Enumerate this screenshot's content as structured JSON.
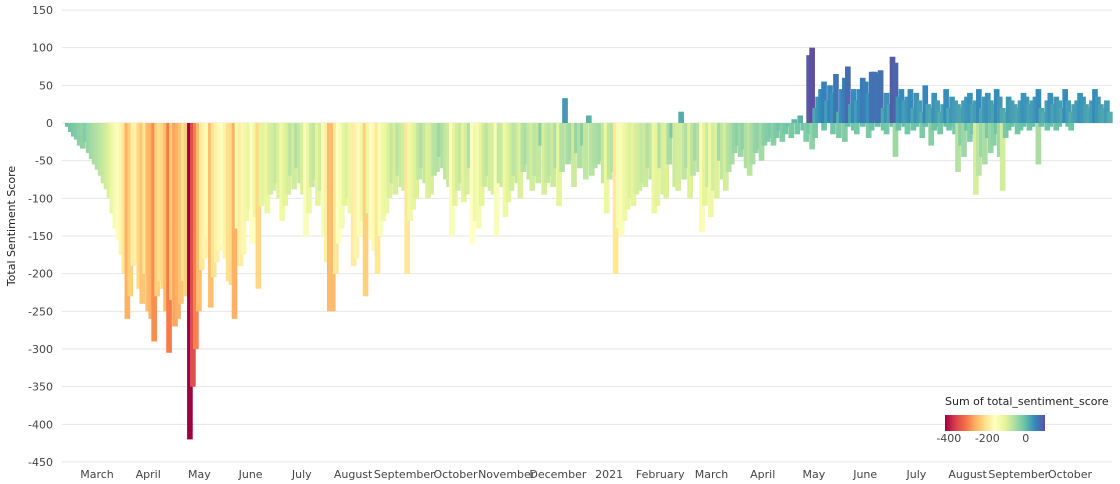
{
  "chart_data": {
    "type": "bar",
    "title": "",
    "xlabel": "",
    "ylabel": "Total Sentiment Score",
    "ylim": [
      -450,
      150
    ],
    "y_ticks": [
      150,
      100,
      50,
      0,
      -50,
      -100,
      -150,
      -200,
      -250,
      -300,
      -350,
      -400,
      -450
    ],
    "grid": "horizontal",
    "x_ticks": [
      "March",
      "April",
      "May",
      "June",
      "July",
      "August",
      "September",
      "October",
      "November",
      "December",
      "2021",
      "February",
      "March",
      "April",
      "May",
      "June",
      "July",
      "August",
      "September",
      "October"
    ],
    "legend": {
      "title": "Sum of total_sentiment_score",
      "placement": "bottom-right",
      "ticks": [
        -400,
        -200,
        0
      ],
      "range": [
        -420,
        100
      ],
      "colors": [
        "#9e0142",
        "#d53e4f",
        "#f46d43",
        "#fdae61",
        "#fee08b",
        "#ffffbf",
        "#e6f598",
        "#abdda4",
        "#66c2a5",
        "#3288bd",
        "#5e4fa2"
      ]
    },
    "series": [
      {
        "name": "Sum of total_sentiment_score",
        "note": "one bar per day, starting late February 2020",
        "values": [
          -5,
          -12,
          -18,
          -22,
          -30,
          -34,
          -25,
          -40,
          -48,
          -55,
          -62,
          -70,
          -80,
          -88,
          -100,
          -120,
          -140,
          -155,
          -175,
          -200,
          -260,
          -230,
          -190,
          -180,
          -220,
          -240,
          -200,
          -250,
          -260,
          -290,
          -230,
          -210,
          -220,
          -250,
          -305,
          -235,
          -270,
          -260,
          -240,
          -210,
          -230,
          -420,
          -350,
          -300,
          -250,
          -195,
          -180,
          -150,
          -245,
          -205,
          -185,
          -170,
          -160,
          -180,
          -210,
          -215,
          -260,
          -140,
          -190,
          -175,
          -130,
          -115,
          -160,
          -125,
          -220,
          -110,
          -105,
          -120,
          -95,
          -90,
          -80,
          -100,
          -130,
          -110,
          -95,
          -70,
          -88,
          -60,
          -80,
          -95,
          -150,
          -120,
          -85,
          -75,
          -110,
          -90,
          -150,
          -185,
          -250,
          -250,
          -200,
          -160,
          -140,
          -110,
          -100,
          -120,
          -190,
          -180,
          -150,
          -130,
          -230,
          -120,
          -155,
          -170,
          -200,
          -150,
          -130,
          -120,
          -100,
          -80,
          -95,
          -70,
          -85,
          -90,
          -200,
          -130,
          -115,
          -100,
          -75,
          -60,
          -80,
          -100,
          -95,
          -70,
          -65,
          -45,
          -60,
          -75,
          -85,
          -150,
          -110,
          -90,
          -80,
          -105,
          -95,
          -60,
          -160,
          -130,
          -140,
          -110,
          -85,
          -70,
          -90,
          -95,
          -150,
          -80,
          -85,
          -125,
          -105,
          -90,
          -70,
          -80,
          -100,
          -65,
          -55,
          -75,
          -90,
          -70,
          -80,
          -30,
          -95,
          -80,
          -70,
          -85,
          -60,
          -110,
          -65,
          33,
          -55,
          -50,
          -85,
          -40,
          -60,
          -30,
          -75,
          10,
          -70,
          -60,
          -55,
          -50,
          -80,
          -120,
          -75,
          -65,
          -200,
          -140,
          -150,
          -130,
          -115,
          -100,
          -110,
          -95,
          -90,
          -80,
          -85,
          -60,
          -75,
          -120,
          -110,
          -60,
          -95,
          -100,
          -55,
          -20,
          -85,
          -90,
          15,
          -75,
          -60,
          -100,
          -70,
          -50,
          -65,
          -145,
          -110,
          -85,
          -125,
          -90,
          -100,
          -50,
          -75,
          -90,
          -65,
          -55,
          -40,
          -30,
          -45,
          -35,
          -60,
          -70,
          -55,
          -40,
          -35,
          -50,
          -30,
          -25,
          -20,
          -30,
          -20,
          -10,
          -25,
          -15,
          -5,
          -20,
          5,
          -15,
          10,
          -10,
          -25,
          90,
          100,
          20,
          35,
          45,
          55,
          30,
          50,
          40,
          65,
          15,
          45,
          60,
          75,
          25,
          45,
          30,
          45,
          60,
          55,
          40,
          68,
          68,
          66,
          70,
          20,
          40,
          25,
          88,
          80,
          35,
          45,
          30,
          35,
          45,
          20,
          40,
          30,
          15,
          50,
          25,
          20,
          40,
          30,
          15,
          25,
          45,
          20,
          35,
          30,
          25,
          20,
          30,
          35,
          40,
          25,
          30,
          45,
          20,
          35,
          40,
          30,
          25,
          45,
          35,
          20,
          15,
          35,
          30,
          25,
          20,
          30,
          40,
          35,
          25,
          30,
          35,
          45,
          20,
          15,
          30,
          40,
          25,
          35,
          30,
          20,
          45,
          30,
          15,
          25,
          30,
          40,
          35,
          25,
          20,
          30,
          45,
          35,
          25,
          20,
          30,
          15
        ],
        "negative_overlay": [
          0,
          0,
          0,
          0,
          0,
          0,
          0,
          0,
          0,
          0,
          0,
          0,
          0,
          0,
          0,
          0,
          0,
          0,
          0,
          0,
          0,
          0,
          0,
          0,
          0,
          0,
          0,
          0,
          0,
          0,
          0,
          0,
          0,
          0,
          0,
          0,
          0,
          0,
          0,
          0,
          0,
          0,
          0,
          0,
          0,
          0,
          0,
          0,
          0,
          0,
          0,
          0,
          0,
          0,
          0,
          0,
          0,
          0,
          0,
          0,
          0,
          0,
          0,
          0,
          0,
          0,
          0,
          0,
          0,
          0,
          0,
          0,
          0,
          0,
          0,
          0,
          0,
          0,
          0,
          0,
          0,
          0,
          0,
          0,
          0,
          0,
          0,
          0,
          0,
          0,
          0,
          0,
          0,
          0,
          0,
          0,
          0,
          0,
          0,
          0,
          0,
          0,
          0,
          0,
          0,
          0,
          0,
          0,
          0,
          0,
          0,
          0,
          0,
          0,
          0,
          0,
          0,
          0,
          0,
          0,
          0,
          0,
          0,
          0,
          0,
          0,
          0,
          0,
          0,
          0,
          0,
          0,
          0,
          0,
          0,
          0,
          0,
          0,
          0,
          0,
          0,
          0,
          0,
          0,
          0,
          0,
          0,
          0,
          0,
          0,
          0,
          0,
          0,
          0,
          0,
          0,
          0,
          0,
          0,
          0,
          0,
          0,
          0,
          0,
          0,
          0,
          0,
          0,
          0,
          0,
          0,
          0,
          0,
          0,
          0,
          0,
          0,
          0,
          0,
          0,
          0,
          0,
          0,
          0,
          0,
          0,
          0,
          0,
          0,
          0,
          0,
          0,
          0,
          0,
          0,
          0,
          0,
          0,
          0,
          0,
          0,
          0,
          0,
          0,
          0,
          0,
          0,
          0,
          0,
          0,
          0,
          0,
          0,
          0,
          0,
          0,
          0,
          0,
          0,
          0,
          0,
          0,
          0,
          0,
          0,
          0,
          0,
          0,
          0,
          0,
          0,
          0,
          0,
          0,
          0,
          0,
          0,
          0,
          0,
          0,
          0,
          0,
          0,
          0,
          0,
          0,
          0,
          0,
          0,
          -15,
          -35,
          -20,
          0,
          0,
          -10,
          0,
          0,
          -15,
          0,
          -20,
          0,
          -25,
          -5,
          0,
          -10,
          -15,
          0,
          -5,
          0,
          -20,
          -10,
          0,
          -5,
          0,
          -10,
          -15,
          0,
          -5,
          -45,
          -10,
          0,
          -5,
          -15,
          0,
          -10,
          -5,
          0,
          -20,
          -5,
          0,
          -30,
          -10,
          -5,
          -15,
          0,
          -5,
          -10,
          -5,
          -15,
          -65,
          -30,
          -45,
          -10,
          -25,
          -15,
          -95,
          -70,
          -45,
          -55,
          -20,
          -40,
          -30,
          -15,
          -45,
          -90,
          -20,
          -10,
          -5,
          0,
          -15,
          -10,
          -5,
          0,
          -10,
          -5,
          0,
          -55,
          -5,
          0,
          -10,
          -5,
          0,
          -10,
          -5,
          0,
          0,
          -5,
          -10,
          0
        ]
      }
    ]
  }
}
